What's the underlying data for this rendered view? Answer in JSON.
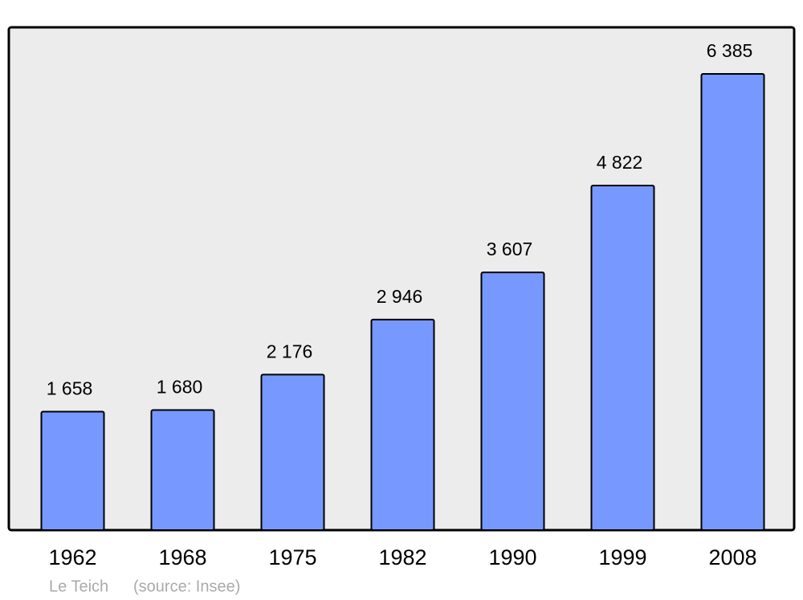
{
  "chart_data": {
    "type": "bar",
    "categories": [
      "1962",
      "1968",
      "1975",
      "1982",
      "1990",
      "1999",
      "2008"
    ],
    "values": [
      1658,
      1680,
      2176,
      2946,
      3607,
      4822,
      6385
    ],
    "value_labels": [
      "1 658",
      "1 680",
      "2 176",
      "2 946",
      "3 607",
      "4 822",
      "6 385"
    ],
    "color": "#7799ff",
    "caption": "Le Teich",
    "source": "(source: Insee)"
  }
}
